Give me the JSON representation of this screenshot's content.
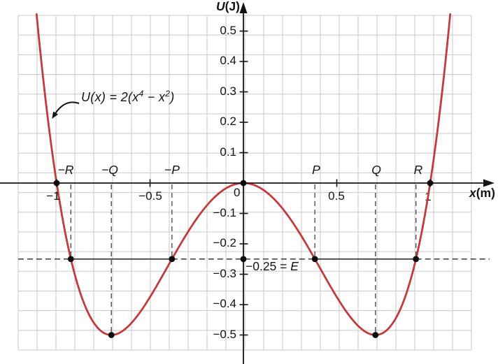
{
  "axes": {
    "y_label_symbol": "U",
    "y_label_unit": "(J)",
    "x_label_symbol": "x",
    "x_label_unit": "(m)"
  },
  "curve_label": {
    "pre": "U(x) = 2(x",
    "sup1": "4",
    "mid": " − x",
    "sup2": "2",
    "post": ")"
  },
  "energy_label": {
    "value": "−0.25 = ",
    "symbol": "E"
  },
  "x_tick_labels": {
    "m1": "−1",
    "m05": "−0.5",
    "zero": "0",
    "p05": "0.5",
    "p1": "1"
  },
  "y_tick_labels": [
    "0.5",
    "0.4",
    "0.3",
    "0.2",
    "0.1",
    "−0.1",
    "−0.2",
    "−0.3",
    "−0.4",
    "−0.5"
  ],
  "point_labels": [
    "−R",
    "−Q",
    "−P",
    "P",
    "Q",
    "R"
  ],
  "chart_data": {
    "type": "line",
    "title": "",
    "function_label": "U(x) = 2(x⁴ − x²)",
    "xlabel": "x(m)",
    "ylabel": "U(J)",
    "xlim": [
      -1.3,
      1.36
    ],
    "ylim": [
      -0.55,
      0.55
    ],
    "x_ticks": [
      -1,
      -0.5,
      0,
      0.5,
      1
    ],
    "y_ticks": [
      0.5,
      0.4,
      0.3,
      0.2,
      0.1,
      -0.1,
      -0.2,
      -0.3,
      -0.4,
      -0.5
    ],
    "grid": true,
    "series": [
      {
        "name": "U(x) = 2(x^4 - x^2)",
        "equation_coefficients": {
          "x4": 2,
          "x2": -2
        },
        "color": "#c23b3d"
      }
    ],
    "curve_draw_range": [
      -1.1075,
      1.1075
    ],
    "energy_line": {
      "U": -0.25,
      "label": "−0.25 = E"
    },
    "turning_points": {
      "P": 0.3827,
      "Q": 0.7071,
      "R": 0.9239
    },
    "equilibria": [
      {
        "x": -0.7071,
        "U": -0.5
      },
      {
        "x": 0.7071,
        "U": -0.5
      }
    ],
    "zeros": [
      -1,
      0,
      1
    ],
    "marked_points": [
      [
        -1,
        0
      ],
      [
        0,
        0
      ],
      [
        1,
        0
      ],
      [
        0,
        -0.25
      ],
      [
        -0.9239,
        -0.25
      ],
      [
        -0.3827,
        -0.25
      ],
      [
        0.3827,
        -0.25
      ],
      [
        0.9239,
        -0.25
      ],
      [
        -0.7071,
        -0.5
      ],
      [
        0.7071,
        -0.5
      ]
    ],
    "guide_lines": [
      {
        "x": -0.9239,
        "to_U": -0.25
      },
      {
        "x": -0.7071,
        "to_U": -0.5
      },
      {
        "x": -0.3827,
        "to_U": -0.25
      },
      {
        "x": 0.3827,
        "to_U": -0.25
      },
      {
        "x": 0.7071,
        "to_U": -0.5
      },
      {
        "x": 0.9239,
        "to_U": -0.25
      }
    ]
  }
}
